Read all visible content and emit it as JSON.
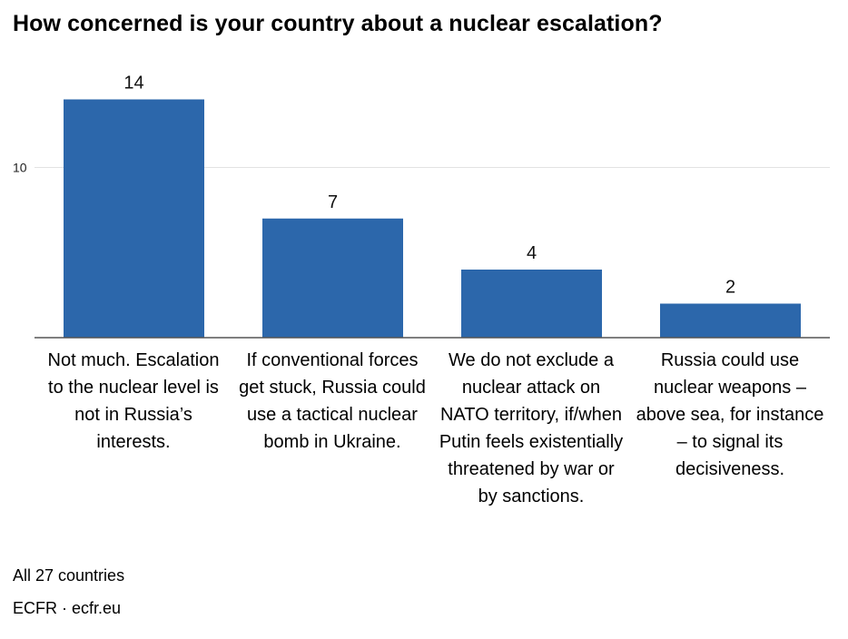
{
  "chart_data": {
    "type": "bar",
    "title": "How concerned is your country about a nuclear escalation?",
    "categories": [
      "Not much. Escalation to the nuclear level is not in Russia’s interests.",
      "If conventional forces get stuck, Russia could use a tactical nuclear bomb in Ukraine.",
      "We do not exclude a nuclear attack on NATO territory, if/when Putin feels existentially threatened by war or by sanctions.",
      "Russia could use nuclear weapons – above sea, for instance – to signal its decisiveness."
    ],
    "values": [
      14,
      7,
      4,
      2
    ],
    "data_labels": [
      "14",
      "7",
      "4",
      "2"
    ],
    "y_ticks": [
      10
    ],
    "y_tick_labels": [
      "10"
    ],
    "ylim": [
      0,
      14
    ],
    "xlabel": "",
    "ylabel": "",
    "grid": true,
    "bar_color": "#2c67ab",
    "note": "All 27 countries",
    "source": "ECFR · ecfr.eu"
  }
}
